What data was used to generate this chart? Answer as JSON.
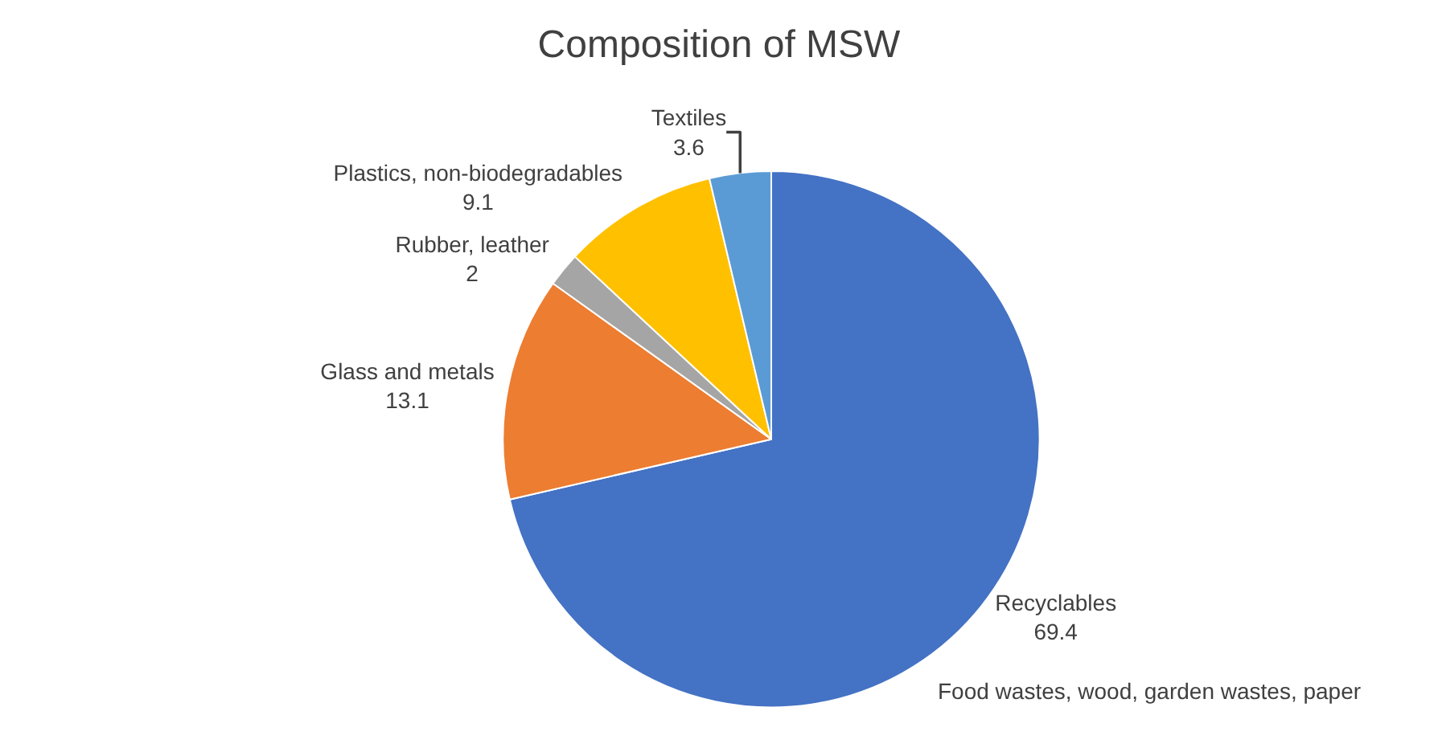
{
  "chart_data": {
    "type": "pie",
    "title": "Composition of MSW",
    "categories": [
      "Recyclables",
      "Glass and metals",
      "Rubber, leather",
      "Plastics, non-biodegradables",
      "Textiles"
    ],
    "values": [
      69.4,
      13.1,
      2,
      9.1,
      3.6
    ],
    "colors": [
      "#4472c4",
      "#ed7d31",
      "#a5a5a5",
      "#ffc000",
      "#5b9bd5"
    ],
    "data_labels": true,
    "annotations": [
      "Food wastes, wood, garden wastes, paper"
    ],
    "legend": false
  }
}
